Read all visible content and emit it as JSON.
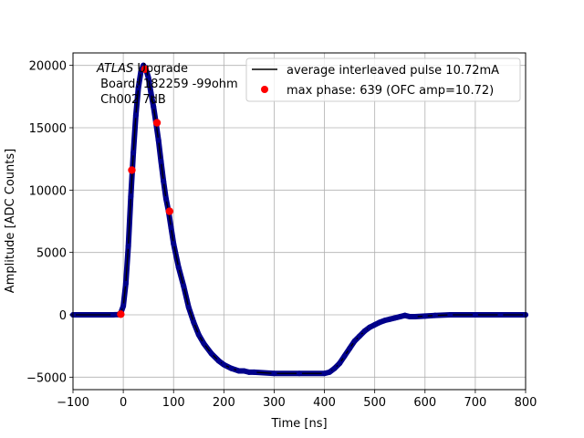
{
  "chart_data": {
    "type": "scatter",
    "xlabel": "Time [ns]",
    "ylabel": "Amplitude [ADC Counts]",
    "xlim": [
      -100,
      800
    ],
    "ylim": [
      -6000,
      21000
    ],
    "xticks": [
      -100,
      0,
      100,
      200,
      300,
      400,
      500,
      600,
      700,
      800
    ],
    "yticks": [
      -5000,
      0,
      5000,
      10000,
      15000,
      20000
    ],
    "xtick_labels": [
      "−100",
      "0",
      "100",
      "200",
      "300",
      "400",
      "500",
      "600",
      "700",
      "800"
    ],
    "ytick_labels": [
      "−5000",
      "0",
      "5000",
      "10000",
      "15000",
      "20000"
    ],
    "grid": true,
    "legend_placement": "top-right",
    "annotation": {
      "line1_italic": "ATLAS",
      "line1_rest": " Upgrade",
      "line2": " Board: 182259 -99ohm",
      "line3": " Ch002 7dB"
    },
    "series": [
      {
        "name": "average interleaved pulse 10.72mA",
        "marker": "line",
        "color": "#000000",
        "point_color": "#00008b",
        "x": [
          -100,
          -20,
          -10,
          -5,
          0,
          5,
          10,
          15,
          20,
          25,
          30,
          35,
          40,
          45,
          50,
          55,
          60,
          65,
          70,
          75,
          80,
          85,
          90,
          95,
          100,
          110,
          120,
          130,
          140,
          150,
          160,
          175,
          190,
          200,
          215,
          230,
          240,
          250,
          260,
          300,
          350,
          400,
          410,
          420,
          430,
          440,
          450,
          460,
          470,
          480,
          490,
          500,
          510,
          520,
          530,
          540,
          550,
          560,
          570,
          580,
          600,
          620,
          650,
          700,
          750,
          800
        ],
        "y": [
          0,
          0,
          20,
          150,
          700,
          2500,
          5500,
          9500,
          13000,
          16000,
          18200,
          19500,
          20000,
          19700,
          19000,
          17800,
          16700,
          15400,
          14000,
          12300,
          10700,
          9300,
          8300,
          7000,
          5700,
          3800,
          2300,
          600,
          -600,
          -1600,
          -2300,
          -3100,
          -3700,
          -4000,
          -4300,
          -4500,
          -4500,
          -4600,
          -4600,
          -4700,
          -4700,
          -4700,
          -4600,
          -4300,
          -3900,
          -3300,
          -2700,
          -2100,
          -1700,
          -1300,
          -1000,
          -800,
          -600,
          -450,
          -350,
          -250,
          -150,
          -50,
          -150,
          -150,
          -100,
          -50,
          0,
          0,
          0,
          0
        ]
      },
      {
        "name": "max phase: 639 (OFC amp=10.72)",
        "marker": "o",
        "color": "#ff0000",
        "x": [
          -5,
          17,
          43,
          67,
          92
        ],
        "y": [
          50,
          11600,
          19700,
          15400,
          8300
        ]
      }
    ]
  }
}
